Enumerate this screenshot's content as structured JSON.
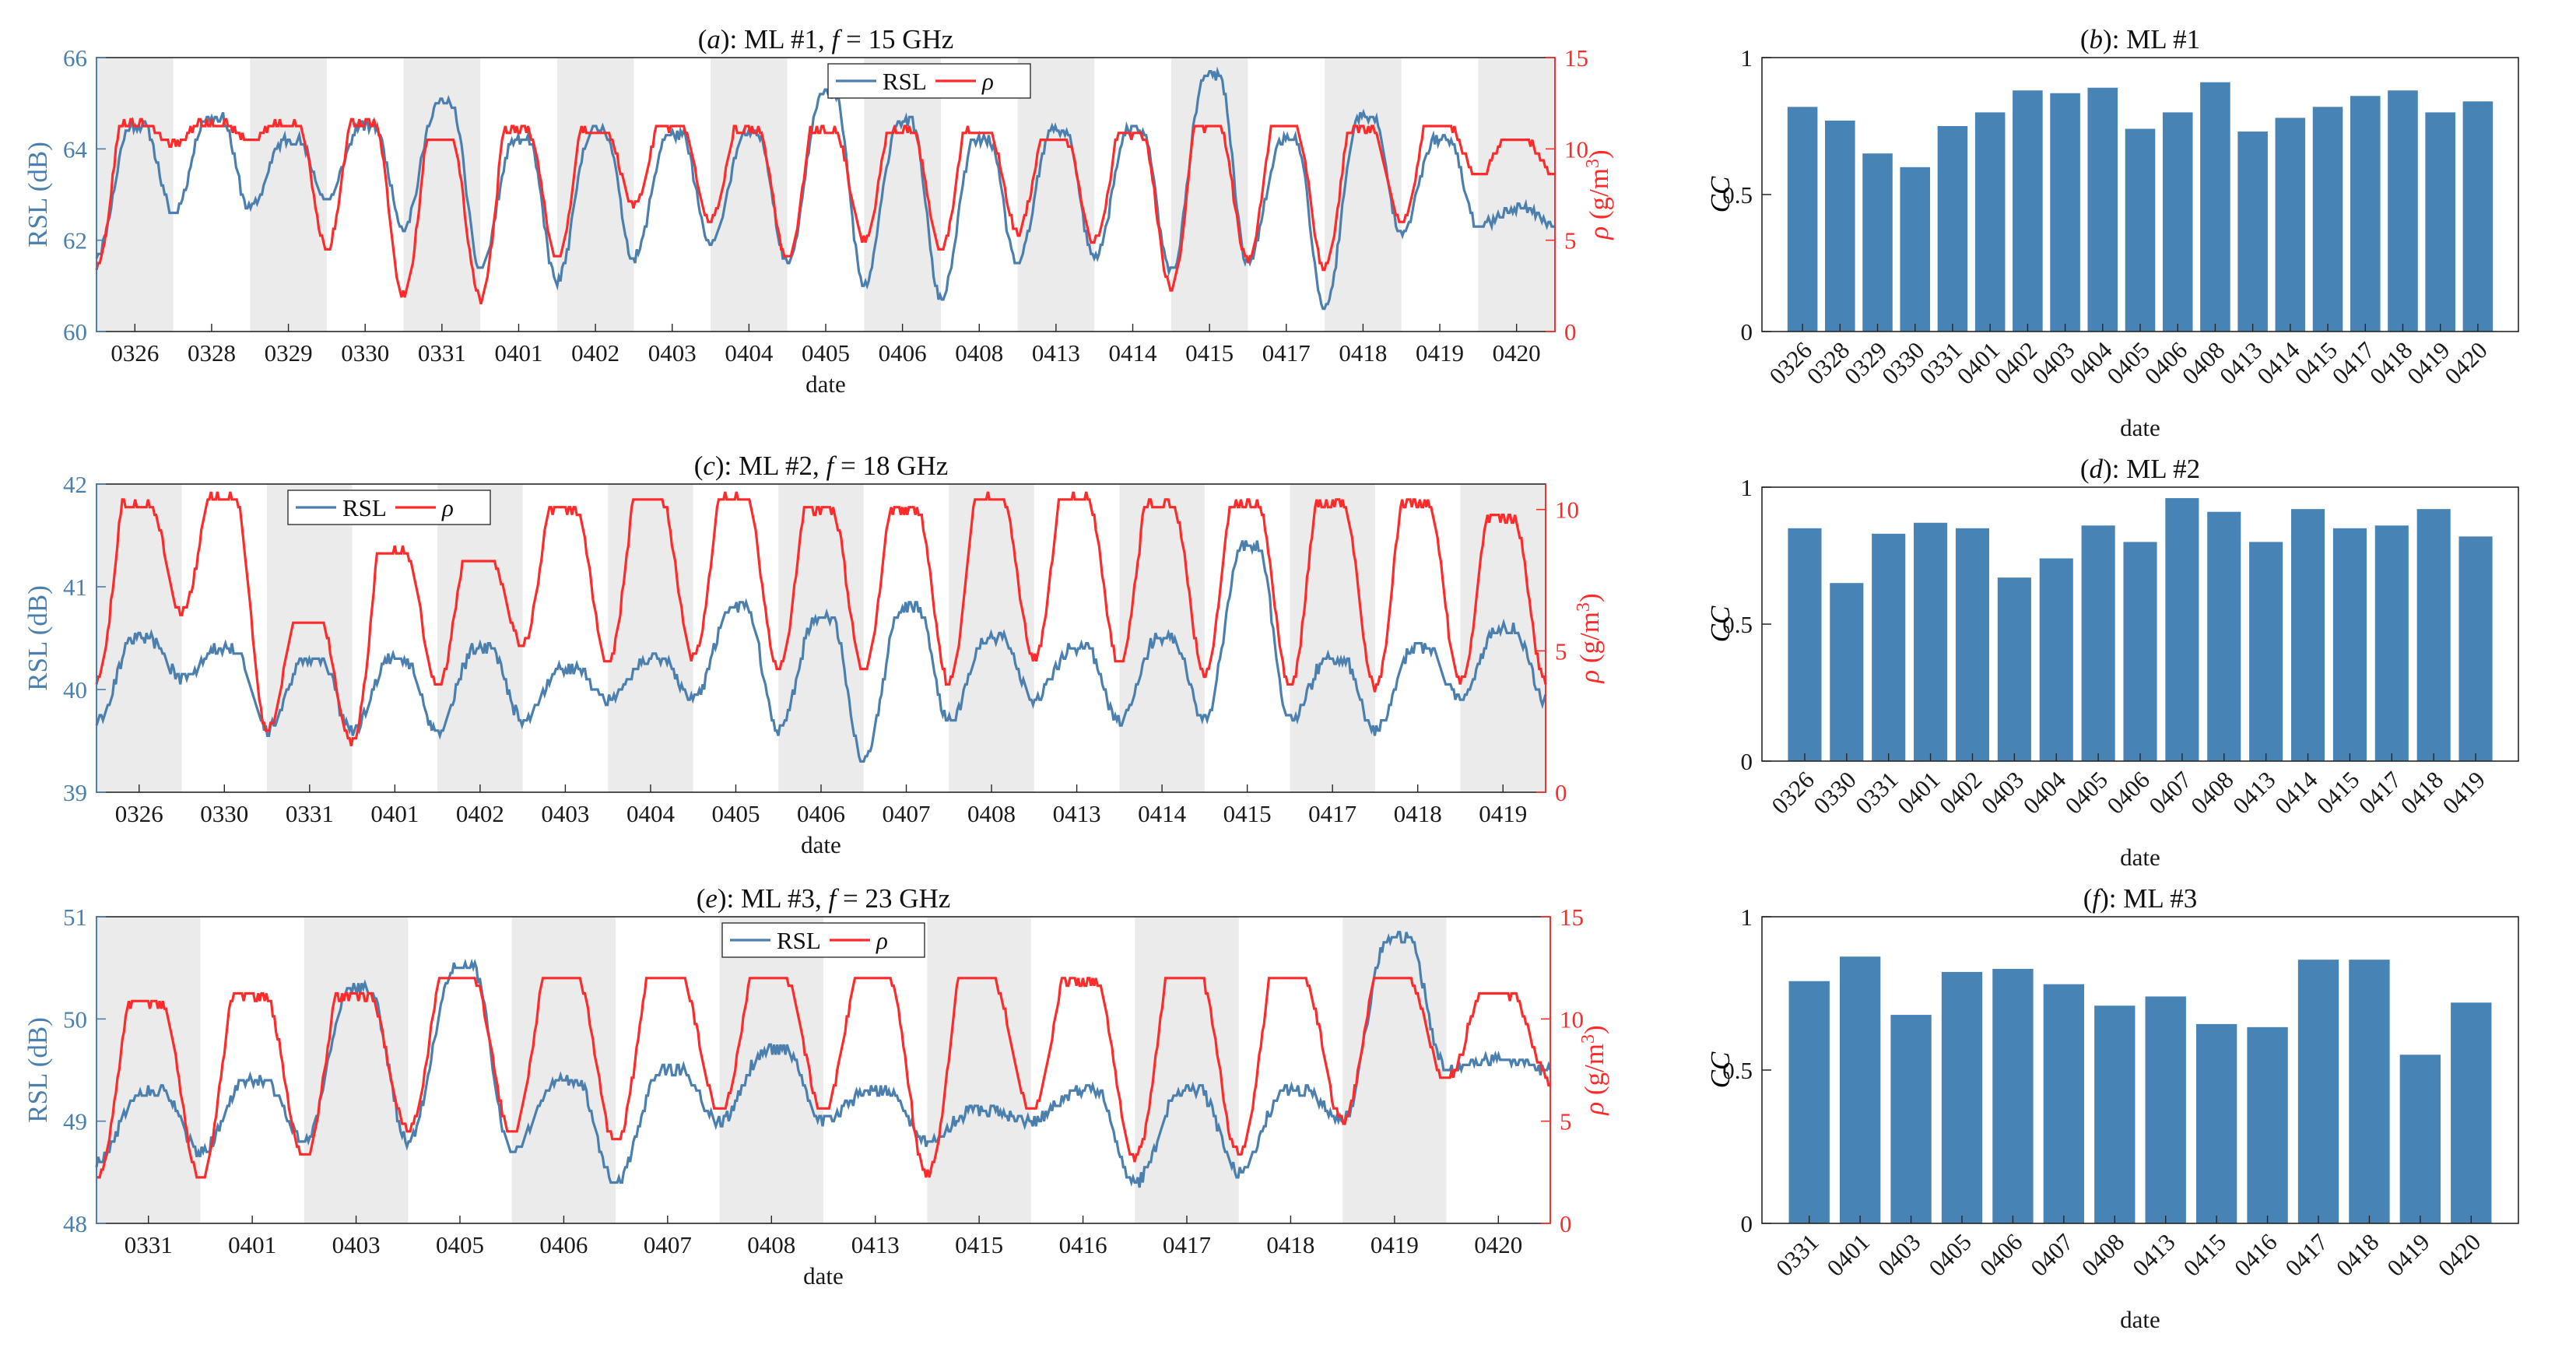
{
  "figure": {
    "colors": {
      "rsl": "#4a7fae",
      "rsl_light": "#7aa3c4",
      "rho": "#ff2b2b",
      "bar": "#4783b5",
      "shade": "#ebebeb"
    }
  },
  "chart_data": [
    {
      "id": "a",
      "type": "line",
      "title_label": "(a)",
      "title_text": ": ML #1, ",
      "title_f": "f",
      "title_rest": " = 15 GHz",
      "xlabel": "date",
      "ylabel_left": "RSL (dB)",
      "ylabel_right_rho": "ρ",
      "ylabel_right_unit": " (g/m",
      "ylabel_right_exp": "3",
      "ylabel_right_close": ")",
      "left_range": [
        60,
        66
      ],
      "left_ticks": [
        60,
        62,
        64,
        66
      ],
      "right_range": [
        0,
        15
      ],
      "right_ticks": [
        0,
        5,
        10,
        15
      ],
      "categories": [
        "0326",
        "0328",
        "0329",
        "0330",
        "0331",
        "0401",
        "0402",
        "0403",
        "0404",
        "0405",
        "0406",
        "0408",
        "0413",
        "0414",
        "0415",
        "0417",
        "0418",
        "0419",
        "0420"
      ],
      "legend": [
        "RSL",
        "ρ"
      ],
      "series": [
        {
          "name": "RSL",
          "axis": "left",
          "night": [
            61.7,
            62.6,
            62.7,
            62.9,
            62.3,
            61.4,
            61.1,
            61.6,
            61.9,
            61.5,
            61.0,
            60.7,
            61.5,
            61.6,
            61.3,
            61.5,
            60.5,
            62.2,
            62.3
          ],
          "day": [
            64.5,
            64.7,
            64.2,
            64.5,
            65.0,
            64.2,
            64.4,
            64.3,
            64.3,
            65.2,
            64.6,
            64.2,
            64.4,
            64.4,
            65.6,
            64.2,
            64.7,
            64.2,
            62.7
          ]
        },
        {
          "name": "ρ",
          "axis": "right",
          "night": [
            3.6,
            10.2,
            10.4,
            4.5,
            2.0,
            1.8,
            4.0,
            7.0,
            6.0,
            4.0,
            5.0,
            4.5,
            5.5,
            5.0,
            2.5,
            4.0,
            3.5,
            6.0,
            8.5
          ],
          "day": [
            11.4,
            11.4,
            11.4,
            11.4,
            10.5,
            11.0,
            11.0,
            11.2,
            11.0,
            11.0,
            11.0,
            11.0,
            10.5,
            10.8,
            11.2,
            11.2,
            11.0,
            11.2,
            10.5
          ]
        }
      ]
    },
    {
      "id": "b",
      "type": "bar",
      "title_label": "(b)",
      "title_text": ": ML #1",
      "xlabel": "date",
      "ylabel": "CC",
      "ylim": [
        0,
        1
      ],
      "yticks": [
        0,
        0.5,
        1
      ],
      "categories": [
        "0326",
        "0328",
        "0329",
        "0330",
        "0331",
        "0401",
        "0402",
        "0403",
        "0404",
        "0405",
        "0406",
        "0408",
        "0413",
        "0414",
        "0415",
        "0417",
        "0418",
        "0419",
        "0420"
      ],
      "values": [
        0.82,
        0.77,
        0.65,
        0.6,
        0.75,
        0.8,
        0.88,
        0.87,
        0.89,
        0.74,
        0.8,
        0.91,
        0.73,
        0.78,
        0.82,
        0.86,
        0.88,
        0.8,
        0.84
      ]
    },
    {
      "id": "c",
      "type": "line",
      "title_label": "(c)",
      "title_text": ": ML #2, ",
      "title_f": "f",
      "title_rest": " = 18 GHz",
      "xlabel": "date",
      "ylabel_left": "RSL (dB)",
      "ylabel_right_rho": "ρ",
      "ylabel_right_unit": " (g/m",
      "ylabel_right_exp": "3",
      "ylabel_right_close": ")",
      "left_range": [
        39,
        42
      ],
      "left_ticks": [
        39,
        40,
        41,
        42
      ],
      "right_range": [
        0,
        10.9
      ],
      "right_ticks": [
        0,
        5,
        10
      ],
      "categories": [
        "0326",
        "0330",
        "0331",
        "0401",
        "0402",
        "0403",
        "0404",
        "0405",
        "0406",
        "0407",
        "0408",
        "0413",
        "0414",
        "0415",
        "0417",
        "0418",
        "0419"
      ],
      "legend": [
        "RSL",
        "ρ"
      ],
      "series": [
        {
          "name": "RSL",
          "axis": "left",
          "night": [
            39.7,
            40.1,
            39.6,
            39.6,
            39.6,
            39.7,
            39.9,
            39.9,
            39.6,
            39.3,
            39.7,
            39.9,
            39.7,
            39.7,
            39.7,
            39.6,
            39.9
          ],
          "day": [
            40.5,
            40.4,
            40.3,
            40.3,
            40.4,
            40.2,
            40.3,
            40.8,
            40.7,
            40.8,
            40.5,
            40.4,
            40.5,
            41.4,
            40.3,
            40.4,
            40.6
          ]
        },
        {
          "name": "ρ",
          "axis": "right",
          "night": [
            4.0,
            6.3,
            2.2,
            1.7,
            3.8,
            5.2,
            4.6,
            4.8,
            4.3,
            4.3,
            3.9,
            4.7,
            4.6,
            4.2,
            3.8,
            3.7,
            3.9
          ],
          "day": [
            10.2,
            10.4,
            6.0,
            8.5,
            8.2,
            10.0,
            10.4,
            10.4,
            10.0,
            10.0,
            10.4,
            10.4,
            10.2,
            10.2,
            10.2,
            10.2,
            9.7
          ]
        }
      ]
    },
    {
      "id": "d",
      "type": "bar",
      "title_label": "(d)",
      "title_text": ": ML #2",
      "xlabel": "date",
      "ylabel": "CC",
      "ylim": [
        0,
        1
      ],
      "yticks": [
        0,
        0.5,
        1
      ],
      "categories": [
        "0326",
        "0330",
        "0331",
        "0401",
        "0402",
        "0403",
        "0404",
        "0405",
        "0406",
        "0407",
        "0408",
        "0413",
        "0414",
        "0415",
        "0417",
        "0418",
        "0419"
      ],
      "values": [
        0.85,
        0.65,
        0.83,
        0.87,
        0.85,
        0.67,
        0.74,
        0.86,
        0.8,
        0.96,
        0.91,
        0.8,
        0.92,
        0.85,
        0.86,
        0.92,
        0.82
      ]
    },
    {
      "id": "e",
      "type": "line",
      "title_label": "(e)",
      "title_text": ": ML #3, ",
      "title_f": "f",
      "title_rest": " = 23 GHz",
      "xlabel": "date",
      "ylabel_left": "RSL (dB)",
      "ylabel_right_rho": "ρ",
      "ylabel_right_unit": " (g/m",
      "ylabel_right_exp": "3",
      "ylabel_right_close": ")",
      "left_range": [
        48,
        51
      ],
      "left_ticks": [
        48,
        49,
        50,
        51
      ],
      "right_range": [
        0,
        15
      ],
      "right_ticks": [
        0,
        5,
        10,
        15
      ],
      "categories": [
        "0331",
        "0401",
        "0403",
        "0405",
        "0406",
        "0407",
        "0408",
        "0413",
        "0415",
        "0416",
        "0417",
        "0418",
        "0419",
        "0420"
      ],
      "legend": [
        "RSL",
        "ρ"
      ],
      "series": [
        {
          "name": "RSL",
          "axis": "left",
          "night": [
            48.6,
            48.7,
            48.8,
            48.8,
            48.7,
            48.4,
            49.0,
            49.0,
            48.8,
            49.0,
            48.4,
            48.5,
            49.0,
            49.5
          ],
          "day": [
            49.3,
            49.4,
            50.3,
            50.5,
            49.4,
            49.5,
            49.7,
            49.3,
            49.1,
            49.3,
            49.3,
            49.3,
            50.8,
            49.6
          ]
        },
        {
          "name": "ρ",
          "axis": "right",
          "night": [
            2.2,
            2.2,
            3.2,
            4.6,
            4.4,
            4.0,
            5.5,
            5.5,
            2.4,
            5.5,
            3.2,
            3.4,
            5.0,
            7.0
          ],
          "day": [
            10.8,
            11.1,
            11.1,
            12.0,
            12.0,
            12.0,
            12.0,
            12.0,
            12.0,
            11.8,
            12.0,
            12.0,
            12.0,
            11.2
          ]
        }
      ]
    },
    {
      "id": "f",
      "type": "bar",
      "title_label": "(f)",
      "title_text": ": ML #3",
      "xlabel": "date",
      "ylabel": "CC",
      "ylim": [
        0,
        1
      ],
      "yticks": [
        0,
        0.5,
        1
      ],
      "categories": [
        "0331",
        "0401",
        "0403",
        "0405",
        "0406",
        "0407",
        "0408",
        "0413",
        "0415",
        "0416",
        "0417",
        "0418",
        "0419",
        "0420"
      ],
      "values": [
        0.79,
        0.87,
        0.68,
        0.82,
        0.83,
        0.78,
        0.71,
        0.74,
        0.65,
        0.64,
        0.86,
        0.86,
        0.55,
        0.72
      ]
    }
  ]
}
